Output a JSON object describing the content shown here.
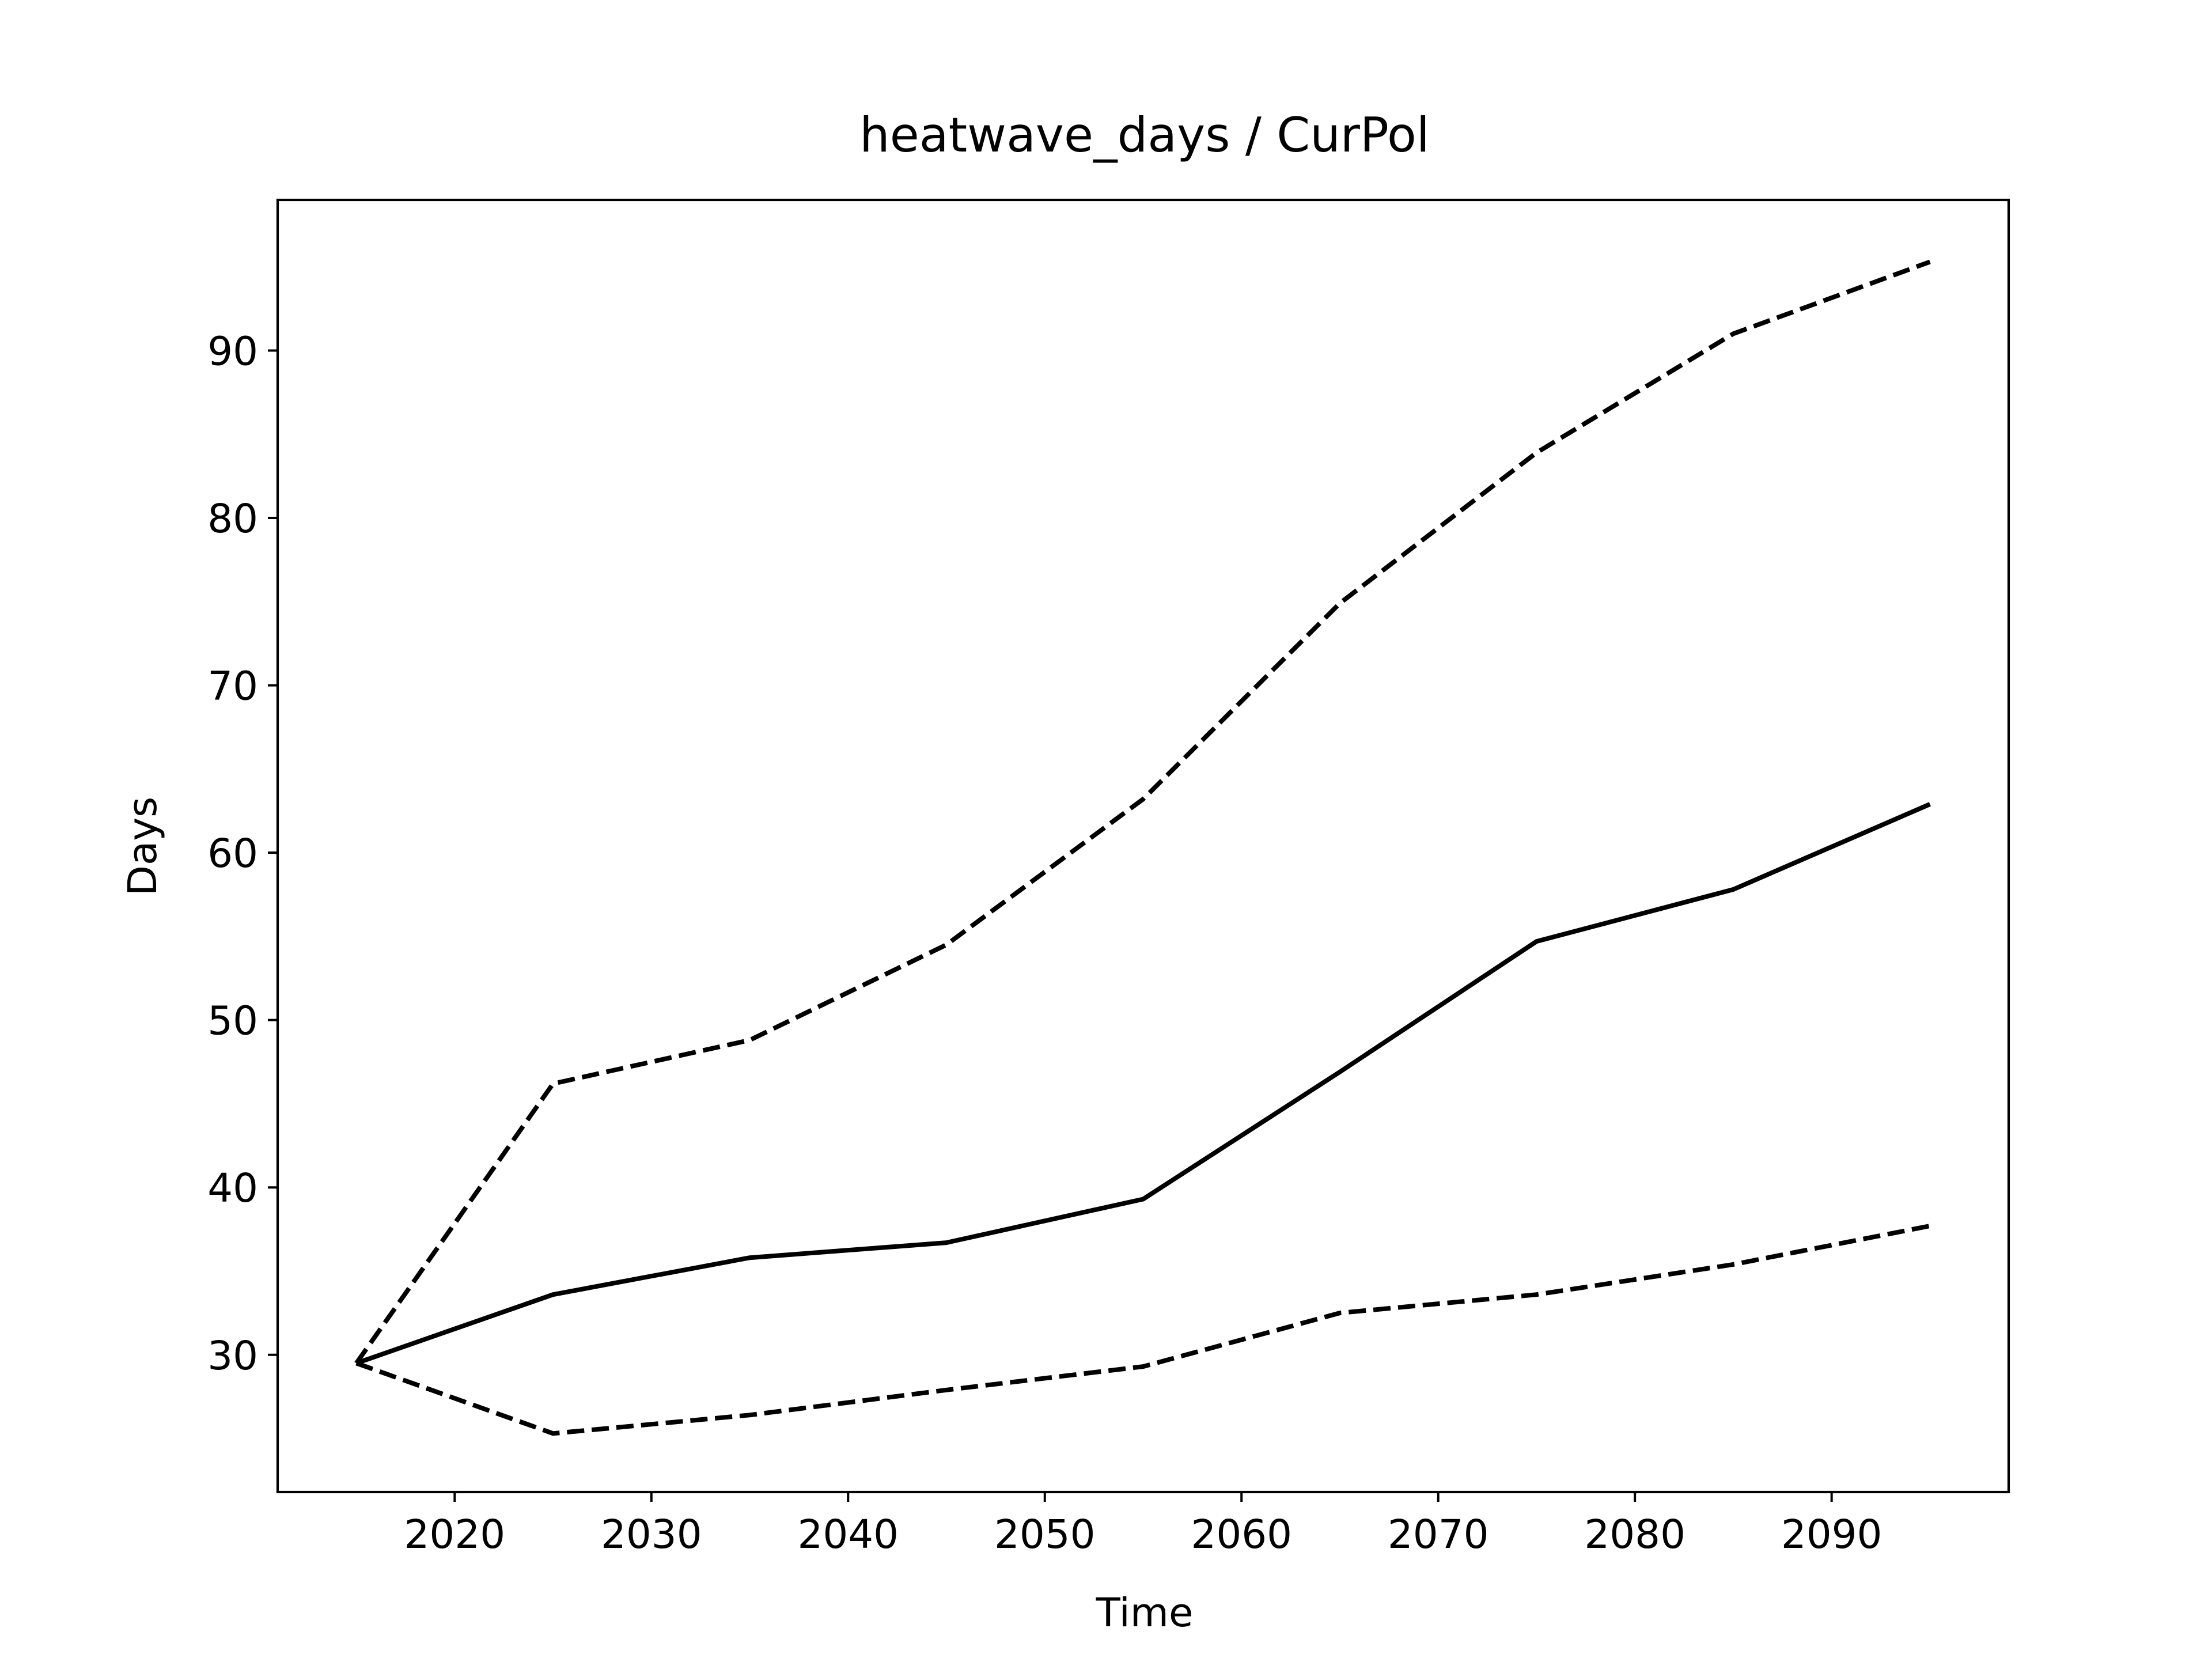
{
  "chart_data": {
    "type": "line",
    "title": "heatwave_days / CurPol",
    "xlabel": "Time",
    "ylabel": "Days",
    "xlim": [
      2011,
      2099
    ],
    "ylim": [
      21.8,
      99.0
    ],
    "xticks": [
      2020,
      2030,
      2040,
      2050,
      2060,
      2070,
      2080,
      2090
    ],
    "yticks": [
      30,
      40,
      50,
      60,
      70,
      80,
      90
    ],
    "grid": false,
    "x": [
      2015,
      2025,
      2035,
      2045,
      2055,
      2065,
      2075,
      2085,
      2095
    ],
    "series": [
      {
        "style": "solid",
        "color": "#000000",
        "values": [
          29.5,
          33.6,
          35.8,
          36.7,
          39.3,
          46.9,
          54.7,
          57.8,
          62.9
        ]
      },
      {
        "style": "dashed",
        "color": "#000000",
        "values": [
          29.5,
          46.2,
          48.8,
          54.5,
          63.2,
          74.9,
          83.9,
          91.0,
          95.3
        ]
      },
      {
        "style": "dashed",
        "color": "#000000",
        "values": [
          29.5,
          25.3,
          26.4,
          27.9,
          29.3,
          32.5,
          33.6,
          35.4,
          37.7
        ]
      }
    ]
  }
}
